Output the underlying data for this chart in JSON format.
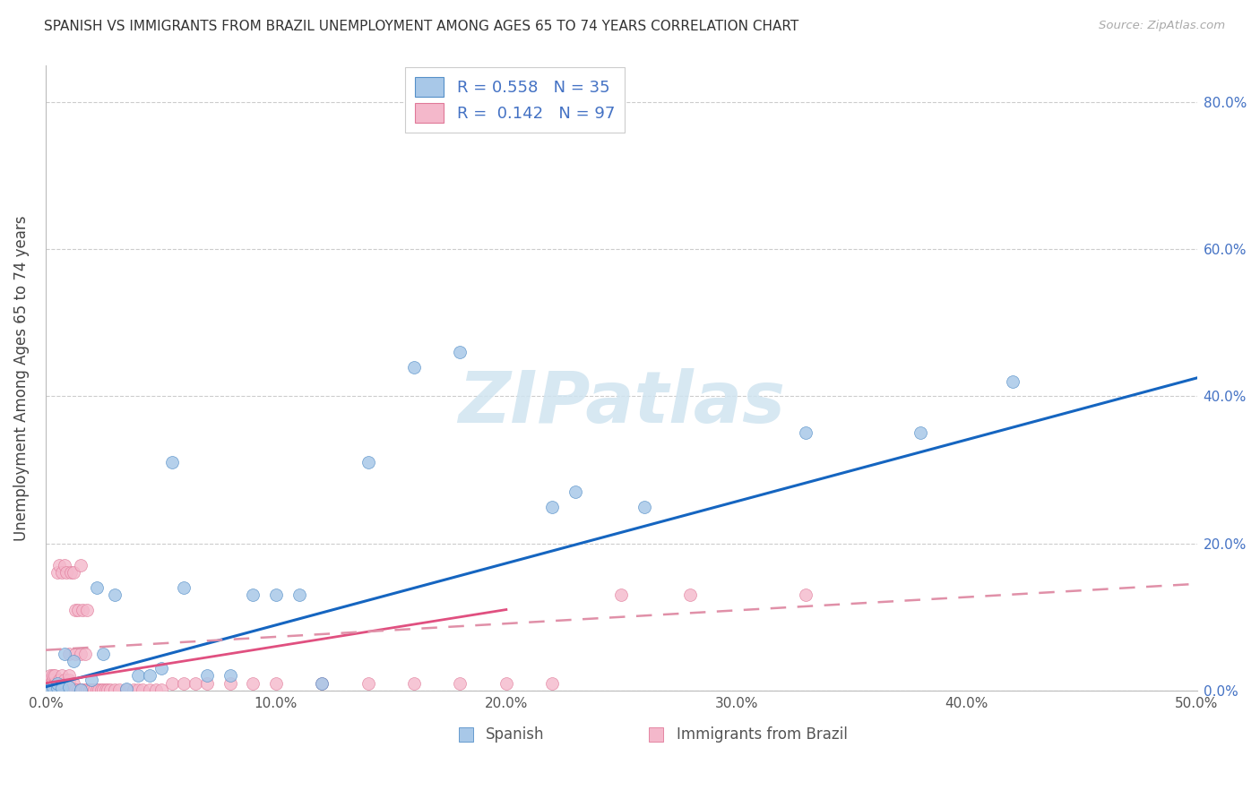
{
  "title": "SPANISH VS IMMIGRANTS FROM BRAZIL UNEMPLOYMENT AMONG AGES 65 TO 74 YEARS CORRELATION CHART",
  "source": "Source: ZipAtlas.com",
  "ylabel": "Unemployment Among Ages 65 to 74 years",
  "xlim": [
    0.0,
    0.5
  ],
  "ylim": [
    0.0,
    0.85
  ],
  "blue_color": "#a8c8e8",
  "pink_color": "#f4b8cb",
  "blue_edge": "#5590c8",
  "pink_edge": "#e07898",
  "blue_line": "#1565c0",
  "pink_line": "#e05080",
  "pink_dash_line": "#e090a8",
  "watermark": "ZIPatlas",
  "watermark_color": "#d0e4f0",
  "r_spanish": 0.558,
  "n_spanish": 35,
  "r_brazil": 0.142,
  "n_brazil": 97,
  "spanish_x": [
    0.001,
    0.002,
    0.003,
    0.005,
    0.005,
    0.007,
    0.008,
    0.01,
    0.012,
    0.015,
    0.02,
    0.022,
    0.025,
    0.03,
    0.035,
    0.04,
    0.045,
    0.05,
    0.055,
    0.06,
    0.07,
    0.08,
    0.09,
    0.1,
    0.11,
    0.12,
    0.14,
    0.16,
    0.18,
    0.22,
    0.23,
    0.26,
    0.33,
    0.38,
    0.42
  ],
  "spanish_y": [
    0.001,
    0.002,
    0.005,
    0.003,
    0.01,
    0.003,
    0.05,
    0.005,
    0.04,
    0.001,
    0.015,
    0.14,
    0.05,
    0.13,
    0.002,
    0.02,
    0.02,
    0.03,
    0.31,
    0.14,
    0.02,
    0.02,
    0.13,
    0.13,
    0.13,
    0.01,
    0.31,
    0.44,
    0.46,
    0.25,
    0.27,
    0.25,
    0.35,
    0.35,
    0.42
  ],
  "brazil_x": [
    0.001,
    0.001,
    0.001,
    0.001,
    0.002,
    0.002,
    0.002,
    0.002,
    0.002,
    0.003,
    0.003,
    0.003,
    0.003,
    0.003,
    0.004,
    0.004,
    0.004,
    0.004,
    0.005,
    0.005,
    0.005,
    0.005,
    0.006,
    0.006,
    0.006,
    0.006,
    0.006,
    0.007,
    0.007,
    0.007,
    0.007,
    0.008,
    0.008,
    0.008,
    0.008,
    0.009,
    0.009,
    0.01,
    0.01,
    0.01,
    0.01,
    0.01,
    0.01,
    0.011,
    0.011,
    0.012,
    0.012,
    0.012,
    0.013,
    0.013,
    0.013,
    0.014,
    0.014,
    0.015,
    0.015,
    0.015,
    0.016,
    0.016,
    0.017,
    0.017,
    0.018,
    0.018,
    0.019,
    0.02,
    0.021,
    0.022,
    0.023,
    0.024,
    0.025,
    0.026,
    0.027,
    0.028,
    0.03,
    0.032,
    0.035,
    0.038,
    0.04,
    0.042,
    0.045,
    0.048,
    0.05,
    0.055,
    0.06,
    0.065,
    0.07,
    0.08,
    0.09,
    0.1,
    0.12,
    0.14,
    0.16,
    0.18,
    0.2,
    0.22,
    0.25,
    0.28,
    0.33
  ],
  "brazil_y": [
    0.001,
    0.002,
    0.005,
    0.01,
    0.001,
    0.002,
    0.005,
    0.015,
    0.02,
    0.001,
    0.002,
    0.01,
    0.015,
    0.02,
    0.001,
    0.005,
    0.01,
    0.02,
    0.001,
    0.003,
    0.01,
    0.16,
    0.001,
    0.005,
    0.01,
    0.015,
    0.17,
    0.001,
    0.005,
    0.02,
    0.16,
    0.001,
    0.01,
    0.015,
    0.17,
    0.001,
    0.16,
    0.001,
    0.005,
    0.01,
    0.015,
    0.02,
    0.05,
    0.001,
    0.16,
    0.001,
    0.01,
    0.16,
    0.001,
    0.05,
    0.11,
    0.001,
    0.11,
    0.001,
    0.05,
    0.17,
    0.001,
    0.11,
    0.001,
    0.05,
    0.001,
    0.11,
    0.001,
    0.001,
    0.001,
    0.001,
    0.001,
    0.001,
    0.001,
    0.001,
    0.001,
    0.001,
    0.001,
    0.001,
    0.001,
    0.001,
    0.001,
    0.001,
    0.001,
    0.001,
    0.001,
    0.01,
    0.01,
    0.01,
    0.01,
    0.01,
    0.01,
    0.01,
    0.01,
    0.01,
    0.01,
    0.01,
    0.01,
    0.01,
    0.13,
    0.13,
    0.13
  ]
}
